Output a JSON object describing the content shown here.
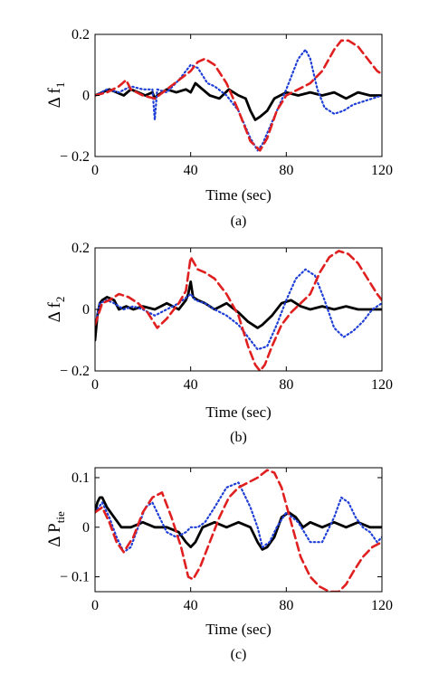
{
  "chart_data": [
    {
      "type": "line",
      "ylabel": "Δ f1",
      "ylabel_main": "Δ f",
      "ylabel_sub": "1",
      "xlabel": "Time (sec)",
      "caption": "(a)",
      "xlim": [
        0,
        120
      ],
      "ylim": [
        -0.2,
        0.2
      ],
      "xticks": [
        0,
        40,
        80,
        120
      ],
      "yticks": [
        -0.2,
        0,
        0.2
      ],
      "xtick_labels": [
        "0",
        "40",
        "80",
        "120"
      ],
      "ytick_labels": [
        "− 0.2",
        "0",
        "0.2"
      ],
      "grid": false,
      "series": [
        {
          "style": "solid",
          "color": "#000000",
          "x": [
            0,
            3,
            6,
            9,
            12,
            15,
            18,
            21,
            24,
            25,
            26,
            30,
            34,
            38,
            40,
            42,
            45,
            48,
            52,
            56,
            60,
            63,
            65,
            67,
            69,
            72,
            75,
            80,
            85,
            90,
            95,
            100,
            105,
            110,
            115,
            120
          ],
          "y": [
            0,
            0.01,
            0.02,
            0.01,
            0,
            0.02,
            0.01,
            0,
            0.01,
            -0.01,
            0,
            0.02,
            0.01,
            0.02,
            0.01,
            0.04,
            0.02,
            0,
            -0.01,
            0.02,
            0,
            -0.01,
            -0.05,
            -0.08,
            -0.07,
            -0.05,
            -0.01,
            0.01,
            0,
            0.01,
            0,
            0.01,
            -0.01,
            0.01,
            0,
            0
          ]
        },
        {
          "style": "dotted",
          "color": "#1f3fd6",
          "x": [
            0,
            5,
            10,
            15,
            20,
            24,
            25,
            26,
            30,
            35,
            40,
            43,
            47,
            50,
            55,
            60,
            65,
            68,
            70,
            75,
            80,
            85,
            88,
            90,
            93,
            96,
            100,
            104,
            108,
            112,
            116,
            120
          ],
          "y": [
            0,
            0.02,
            0.01,
            0.03,
            0.02,
            0.02,
            -0.08,
            0.02,
            0.01,
            0.05,
            0.1,
            0.09,
            0.04,
            0.03,
            0,
            -0.05,
            -0.14,
            -0.18,
            -0.16,
            -0.07,
            0.02,
            0.12,
            0.15,
            0.12,
            0.02,
            -0.04,
            -0.06,
            -0.05,
            -0.03,
            -0.02,
            -0.01,
            0
          ]
        },
        {
          "style": "dashed",
          "color": "#e02020",
          "x": [
            0,
            5,
            10,
            13,
            15,
            20,
            25,
            30,
            35,
            40,
            43,
            46,
            50,
            55,
            60,
            65,
            69,
            72,
            76,
            80,
            85,
            90,
            95,
            100,
            103,
            106,
            110,
            114,
            118,
            120
          ],
          "y": [
            0,
            0.01,
            0.03,
            0.05,
            0.02,
            0,
            -0.01,
            0.02,
            0.05,
            0.08,
            0.11,
            0.12,
            0.1,
            0.04,
            -0.05,
            -0.15,
            -0.18,
            -0.14,
            -0.05,
            0,
            0.02,
            0.04,
            0.08,
            0.15,
            0.18,
            0.18,
            0.16,
            0.12,
            0.08,
            0.07
          ]
        }
      ]
    },
    {
      "type": "line",
      "ylabel": "Δ f2",
      "ylabel_main": "Δ f",
      "ylabel_sub": "2",
      "xlabel": "Time (sec)",
      "caption": "(b)",
      "xlim": [
        0,
        120
      ],
      "ylim": [
        -0.2,
        0.2
      ],
      "xticks": [
        0,
        40,
        80,
        120
      ],
      "yticks": [
        -0.2,
        0,
        0.2
      ],
      "xtick_labels": [
        "0",
        "40",
        "80",
        "120"
      ],
      "ytick_labels": [
        "− 0.2",
        "0",
        "0.2"
      ],
      "grid": false,
      "series": [
        {
          "style": "solid",
          "color": "#000000",
          "x": [
            0,
            1,
            2,
            3,
            5,
            8,
            10,
            13,
            16,
            20,
            25,
            30,
            35,
            38,
            39,
            40,
            41,
            43,
            46,
            50,
            55,
            60,
            64,
            68,
            70,
            74,
            78,
            82,
            86,
            90,
            95,
            100,
            105,
            110,
            115,
            120
          ],
          "y": [
            -0.1,
            -0.02,
            0.02,
            0.03,
            0.04,
            0.03,
            0,
            0.01,
            0,
            0.01,
            0,
            0.02,
            0,
            0.03,
            0.05,
            0.09,
            0.04,
            0.03,
            0.02,
            0,
            0.02,
            -0.01,
            -0.04,
            -0.06,
            -0.05,
            -0.02,
            0.02,
            0.03,
            0.01,
            0,
            0.01,
            0,
            0.01,
            0,
            0,
            0
          ]
        },
        {
          "style": "dotted",
          "color": "#1f3fd6",
          "x": [
            0,
            2,
            5,
            8,
            12,
            16,
            20,
            25,
            30,
            35,
            40,
            42,
            46,
            50,
            55,
            60,
            65,
            68,
            72,
            76,
            80,
            84,
            88,
            92,
            96,
            100,
            104,
            108,
            112,
            116,
            120
          ],
          "y": [
            -0.05,
            0.02,
            0.03,
            0.02,
            0,
            0.01,
            0,
            -0.02,
            0,
            0.02,
            0.05,
            0.03,
            0.02,
            0,
            -0.02,
            -0.05,
            -0.1,
            -0.13,
            -0.12,
            -0.05,
            0.03,
            0.1,
            0.13,
            0.11,
            0.03,
            -0.06,
            -0.09,
            -0.07,
            -0.04,
            0,
            0.02
          ]
        },
        {
          "style": "dashed",
          "color": "#e02020",
          "x": [
            0,
            3,
            6,
            10,
            14,
            18,
            22,
            26,
            30,
            35,
            38,
            40,
            43,
            46,
            50,
            55,
            60,
            64,
            67,
            69,
            71,
            74,
            78,
            82,
            86,
            90,
            94,
            98,
            102,
            106,
            110,
            114,
            118,
            120
          ],
          "y": [
            -0.05,
            0.02,
            0.03,
            0.05,
            0.04,
            0.02,
            -0.01,
            -0.06,
            -0.03,
            0.02,
            0.06,
            0.17,
            0.13,
            0.12,
            0.1,
            0.05,
            -0.02,
            -0.12,
            -0.18,
            -0.2,
            -0.18,
            -0.12,
            -0.05,
            -0.01,
            0.02,
            0.05,
            0.12,
            0.17,
            0.19,
            0.18,
            0.15,
            0.1,
            0.05,
            0.03
          ]
        }
      ]
    },
    {
      "type": "line",
      "ylabel": "Δ Ptie",
      "ylabel_main": "Δ P",
      "ylabel_sub": "tie",
      "xlabel": "Time (sec)",
      "caption": "(c)",
      "xlim": [
        0,
        120
      ],
      "ylim": [
        -0.13,
        0.12
      ],
      "xticks": [
        0,
        40,
        80,
        120
      ],
      "yticks": [
        -0.1,
        0,
        0.1
      ],
      "xtick_labels": [
        "0",
        "40",
        "80",
        "120"
      ],
      "ytick_labels": [
        "− 0.1",
        "0",
        "0.1"
      ],
      "grid": false,
      "series": [
        {
          "style": "solid",
          "color": "#000000",
          "x": [
            0,
            1,
            2,
            3,
            5,
            8,
            11,
            15,
            20,
            25,
            30,
            35,
            38,
            40,
            42,
            45,
            50,
            55,
            60,
            65,
            68,
            70,
            72,
            75,
            78,
            81,
            84,
            87,
            90,
            95,
            100,
            105,
            110,
            115,
            120
          ],
          "y": [
            0.03,
            0.05,
            0.06,
            0.06,
            0.04,
            0.02,
            0,
            0,
            0.01,
            0,
            0,
            -0.01,
            -0.03,
            -0.04,
            -0.03,
            0,
            0.01,
            0,
            0.01,
            0,
            -0.03,
            -0.045,
            -0.04,
            -0.02,
            0.02,
            0.03,
            0.02,
            0,
            0.01,
            0,
            0.01,
            0,
            0.01,
            0,
            0
          ]
        },
        {
          "style": "dotted",
          "color": "#1f3fd6",
          "x": [
            0,
            3,
            6,
            9,
            12,
            15,
            18,
            21,
            24,
            27,
            30,
            34,
            38,
            40,
            43,
            46,
            50,
            55,
            60,
            62,
            65,
            68,
            70,
            73,
            76,
            80,
            85,
            90,
            95,
            100,
            103,
            106,
            109,
            112,
            115,
            118,
            120
          ],
          "y": [
            0.03,
            0.05,
            0.02,
            -0.02,
            -0.05,
            -0.04,
            0,
            0.04,
            0.05,
            0.02,
            -0.01,
            -0.02,
            -0.01,
            0,
            0,
            0.01,
            0.04,
            0.08,
            0.09,
            0.07,
            0.04,
            0,
            -0.04,
            -0.03,
            0,
            0.03,
            0.01,
            -0.03,
            -0.03,
            0.02,
            0.06,
            0.05,
            0.02,
            0,
            -0.01,
            -0.03,
            -0.02
          ]
        },
        {
          "style": "dashed",
          "color": "#e02020",
          "x": [
            0,
            3,
            6,
            9,
            12,
            16,
            20,
            24,
            28,
            32,
            36,
            39,
            41,
            44,
            48,
            52,
            56,
            60,
            64,
            68,
            72,
            75,
            78,
            82,
            86,
            90,
            94,
            98,
            102,
            105,
            108,
            112,
            116,
            120
          ],
          "y": [
            0.03,
            0.04,
            0.01,
            -0.03,
            -0.05,
            -0.02,
            0.03,
            0.06,
            0.07,
            0.02,
            -0.04,
            -0.1,
            -0.105,
            -0.08,
            -0.03,
            0.02,
            0.06,
            0.08,
            0.09,
            0.1,
            0.115,
            0.11,
            0.08,
            0.01,
            -0.06,
            -0.1,
            -0.12,
            -0.13,
            -0.13,
            -0.115,
            -0.09,
            -0.06,
            -0.04,
            -0.03
          ]
        }
      ]
    }
  ]
}
